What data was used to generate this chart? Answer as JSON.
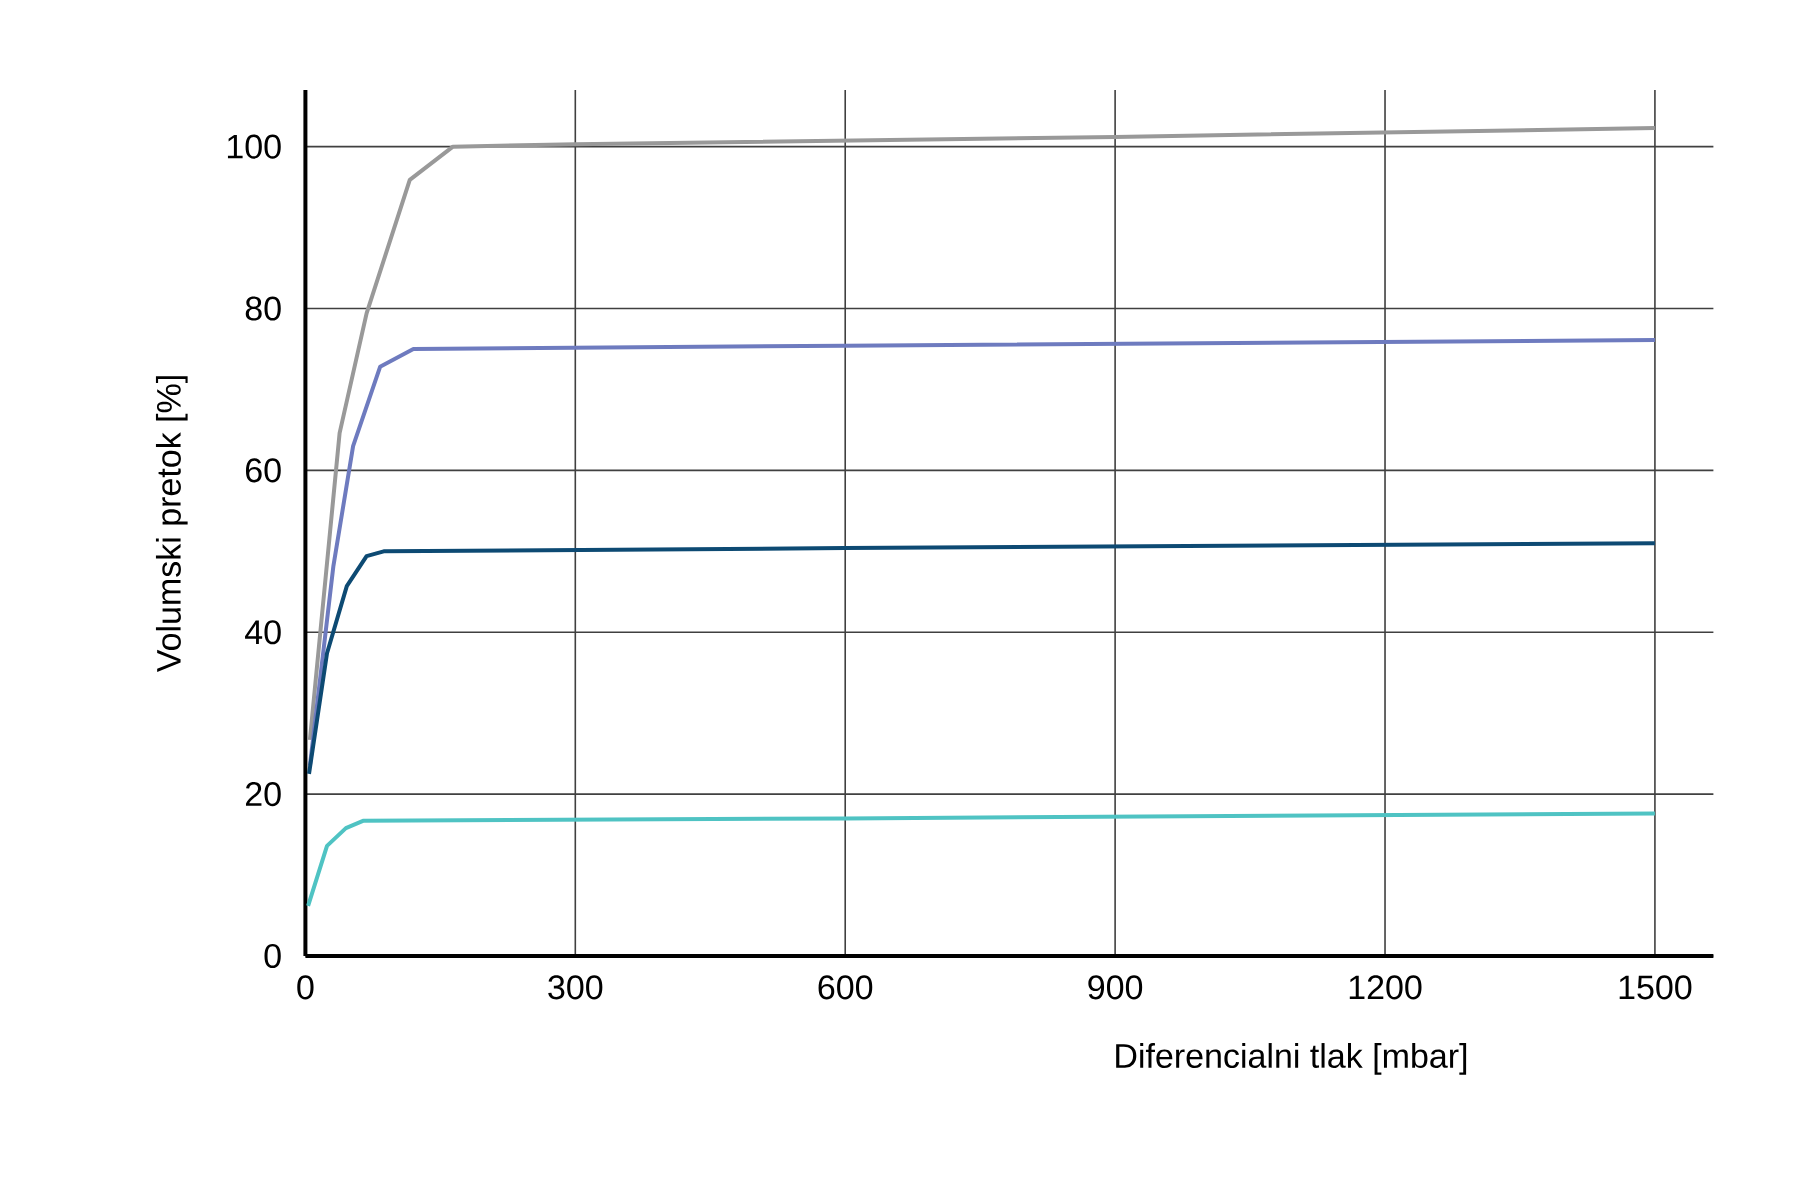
{
  "chart_data": {
    "type": "line",
    "xlabel": "Diferencialni tlak [mbar]",
    "ylabel": "Volumski pretok [%]",
    "xlim": [
      0,
      1565
    ],
    "ylim": [
      0,
      107
    ],
    "xticks": [
      0,
      300,
      600,
      900,
      1200,
      1500
    ],
    "yticks": [
      0,
      20,
      40,
      60,
      80,
      100
    ],
    "grid": true,
    "marker": "none",
    "line_style": "solid",
    "series": [
      {
        "color": "#999999",
        "x": [
          5,
          38,
          68,
          116,
          164,
          300,
          900,
          1500
        ],
        "values": [
          26.7,
          64.6,
          79.4,
          95.9,
          100,
          100.3,
          101.2,
          102.3
        ]
      },
      {
        "color": "#6e7bbf",
        "x": [
          5,
          31,
          53,
          83,
          120,
          600,
          1500
        ],
        "values": [
          23.5,
          48.1,
          63,
          72.8,
          75,
          75.4,
          76.1
        ]
      },
      {
        "color": "#0d4a73",
        "x": [
          4,
          24,
          46,
          68,
          87,
          600,
          1500
        ],
        "values": [
          22.5,
          37.4,
          45.7,
          49.4,
          50,
          50.4,
          51
        ]
      },
      {
        "color": "#4fc3c3",
        "x": [
          3,
          24,
          45,
          64,
          600,
          1500
        ],
        "values": [
          6.2,
          13.6,
          15.8,
          16.7,
          17,
          17.6
        ]
      }
    ]
  }
}
